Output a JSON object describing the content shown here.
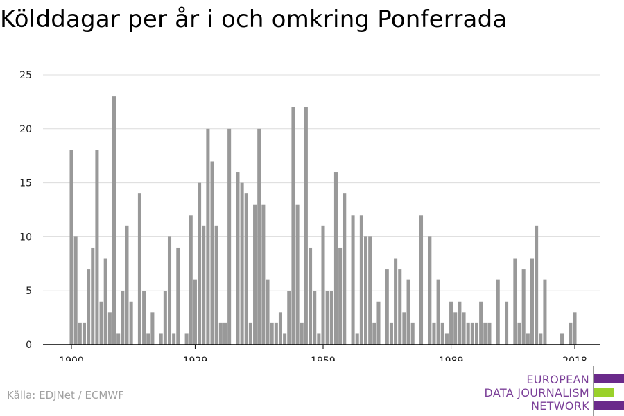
{
  "title": "Kölddagar per år i och omkring Ponferrada",
  "source": "Källa: EDJNet / ECMWF",
  "logo": {
    "lines": [
      "EUROPEAN",
      "DATA JOURNALISM",
      "NETWORK"
    ],
    "colors": {
      "purple": "#6a2a8a",
      "green": "#9ad12b",
      "text": "#7b3f98"
    }
  },
  "chart_data": {
    "type": "bar",
    "title": "Kölddagar per år i och omkring Ponferrada",
    "xlabel": "",
    "ylabel": "",
    "xlim": [
      1899,
      2020
    ],
    "ylim": [
      0,
      25
    ],
    "yticks": [
      0,
      5,
      10,
      15,
      20,
      25
    ],
    "xticks": [
      1900,
      1929,
      1959,
      1989,
      2018
    ],
    "grid": true,
    "bar_color": "#999999",
    "x": [
      1900,
      1901,
      1902,
      1903,
      1904,
      1905,
      1906,
      1907,
      1908,
      1909,
      1910,
      1911,
      1912,
      1913,
      1914,
      1915,
      1916,
      1917,
      1918,
      1919,
      1920,
      1921,
      1922,
      1923,
      1924,
      1925,
      1926,
      1927,
      1928,
      1929,
      1930,
      1931,
      1932,
      1933,
      1934,
      1935,
      1936,
      1937,
      1938,
      1939,
      1940,
      1941,
      1942,
      1943,
      1944,
      1945,
      1946,
      1947,
      1948,
      1949,
      1950,
      1951,
      1952,
      1953,
      1954,
      1955,
      1956,
      1957,
      1958,
      1959,
      1960,
      1961,
      1962,
      1963,
      1964,
      1965,
      1966,
      1967,
      1968,
      1969,
      1970,
      1971,
      1972,
      1973,
      1974,
      1975,
      1976,
      1977,
      1978,
      1979,
      1980,
      1981,
      1982,
      1983,
      1984,
      1985,
      1986,
      1987,
      1988,
      1989,
      1990,
      1991,
      1992,
      1993,
      1994,
      1995,
      1996,
      1997,
      1998,
      1999,
      2000,
      2001,
      2002,
      2003,
      2004,
      2005,
      2006,
      2007,
      2008,
      2009,
      2010,
      2011,
      2012,
      2013,
      2014,
      2015,
      2016,
      2017,
      2018
    ],
    "values": [
      18,
      10,
      2,
      2,
      7,
      9,
      18,
      4,
      8,
      3,
      23,
      1,
      5,
      11,
      4,
      0,
      14,
      5,
      1,
      3,
      0,
      1,
      5,
      10,
      1,
      9,
      0,
      1,
      12,
      6,
      15,
      11,
      20,
      17,
      11,
      2,
      2,
      20,
      0,
      16,
      15,
      14,
      2,
      13,
      20,
      13,
      6,
      2,
      2,
      3,
      1,
      5,
      22,
      13,
      2,
      22,
      9,
      5,
      1,
      11,
      5,
      5,
      16,
      9,
      14,
      0,
      12,
      1,
      12,
      10,
      10,
      2,
      4,
      0,
      7,
      2,
      8,
      7,
      3,
      6,
      2,
      0,
      12,
      0,
      10,
      2,
      6,
      2,
      1,
      4,
      3,
      4,
      3,
      2,
      2,
      2,
      4,
      2,
      2,
      0,
      6,
      0,
      4,
      0,
      8,
      2,
      7,
      1,
      8,
      11,
      1,
      6,
      0,
      0,
      0,
      1,
      0,
      2,
      3
    ]
  }
}
